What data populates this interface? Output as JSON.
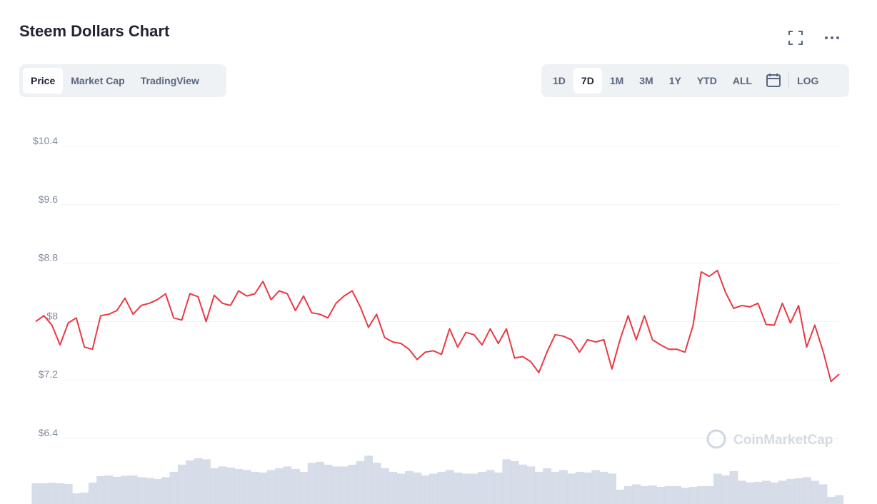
{
  "header": {
    "title": "Steem Dollars Chart"
  },
  "tabs": [
    "Price",
    "Market Cap",
    "TradingView"
  ],
  "ranges": [
    "1D",
    "7D",
    "1M",
    "3M",
    "1Y",
    "YTD",
    "ALL"
  ],
  "log": "LOG",
  "watermark": "CoinMarketCap",
  "chart_data": {
    "type": "line",
    "categories": [
      null,
      null,
      null,
      null,
      null,
      null,
      null,
      null,
      null,
      null,
      null,
      null,
      null,
      null,
      null,
      null,
      null,
      null,
      null,
      null,
      null,
      null,
      null,
      null,
      null,
      null,
      null,
      null,
      null,
      null,
      null,
      null,
      null,
      null,
      null,
      null,
      null,
      null,
      null,
      null,
      null,
      null,
      null,
      null,
      null,
      null,
      null,
      null,
      null,
      null,
      null,
      null,
      null,
      null,
      null,
      null,
      null,
      null,
      null,
      null,
      null,
      null,
      null,
      null,
      null,
      null,
      null,
      null,
      null,
      null,
      null,
      null,
      null,
      null,
      null,
      null,
      null,
      null,
      null,
      null,
      null,
      null,
      null,
      null,
      null,
      null,
      null,
      null,
      null,
      null,
      null,
      null,
      null,
      null,
      null,
      null,
      null,
      null,
      null,
      null
    ],
    "series": [
      {
        "color": "#ea3943",
        "values": [
          8.0,
          8.08,
          7.95,
          7.68,
          7.98,
          8.05,
          7.65,
          7.62,
          8.08,
          8.1,
          8.15,
          8.32,
          8.1,
          8.22,
          8.25,
          8.3,
          8.38,
          8.05,
          8.02,
          8.38,
          8.34,
          8.0,
          8.36,
          8.25,
          8.22,
          8.42,
          8.35,
          8.38,
          8.55,
          8.3,
          8.42,
          8.38,
          8.15,
          8.35,
          8.12,
          8.1,
          8.05,
          8.25,
          8.35,
          8.42,
          8.2,
          7.92,
          8.1,
          7.78,
          7.72,
          7.7,
          7.62,
          7.48,
          7.58,
          7.6,
          7.55,
          7.9,
          7.65,
          7.85,
          7.82,
          7.68,
          7.9,
          7.7,
          7.9,
          7.5,
          7.52,
          7.45,
          7.3,
          7.58,
          7.82,
          7.8,
          7.75,
          7.58,
          7.75,
          7.72,
          7.75,
          7.35,
          7.75,
          8.08,
          7.75,
          8.08,
          7.75,
          7.68,
          7.62,
          7.62,
          7.58,
          7.95,
          8.68,
          8.62,
          8.7,
          8.4,
          8.18,
          8.22,
          8.2,
          8.25,
          7.96,
          7.95,
          8.25,
          7.98,
          8.22,
          7.65,
          7.95,
          7.6,
          7.18,
          7.28
        ]
      },
      {
        "color": "#cfd6e4",
        "type": "bar",
        "axis": "y2",
        "values": [
          5.8,
          5.8,
          5.9,
          5.8,
          5.6,
          3,
          3.2,
          6,
          7.8,
          8,
          7.6,
          7.9,
          8,
          7.5,
          7.3,
          7,
          7.5,
          9,
          11,
          12.2,
          12.8,
          12.5,
          10,
          10.5,
          10.2,
          9.8,
          9.5,
          9,
          8.8,
          9.5,
          10,
          10.5,
          9.8,
          9,
          11.5,
          11.8,
          11,
          10.5,
          10.5,
          11,
          12,
          13.5,
          11.5,
          10,
          9,
          8.5,
          9.2,
          8.8,
          8,
          8.5,
          9,
          9.5,
          8.8,
          8.5,
          8.5,
          9,
          9.5,
          8.8,
          12.5,
          12,
          11,
          10.5,
          9,
          10,
          9,
          9.5,
          8.5,
          9,
          8.8,
          9.5,
          9,
          8.5,
          4,
          5,
          5.5,
          5,
          5.2,
          4.8,
          5,
          5,
          4.5,
          4.8,
          5,
          5,
          8.5,
          8,
          9.2,
          6.5,
          6,
          6.2,
          6.5,
          6,
          6.5,
          7,
          7.2,
          7.5,
          6.5,
          5.5,
          2,
          2.5
        ]
      }
    ],
    "ylim": [
      5.5,
      10.4
    ],
    "yticks": [
      {
        "value": 6.4,
        "label": "$6.4"
      },
      {
        "value": 7.2,
        "label": "$7.2"
      },
      {
        "value": 8,
        "label": "$8"
      },
      {
        "value": 8.8,
        "label": "$8.8"
      },
      {
        "value": 9.6,
        "label": "$9.6"
      },
      {
        "value": 10.4,
        "label": "$10.4"
      }
    ],
    "y2lim": [
      0,
      100
    ],
    "grid": true
  }
}
